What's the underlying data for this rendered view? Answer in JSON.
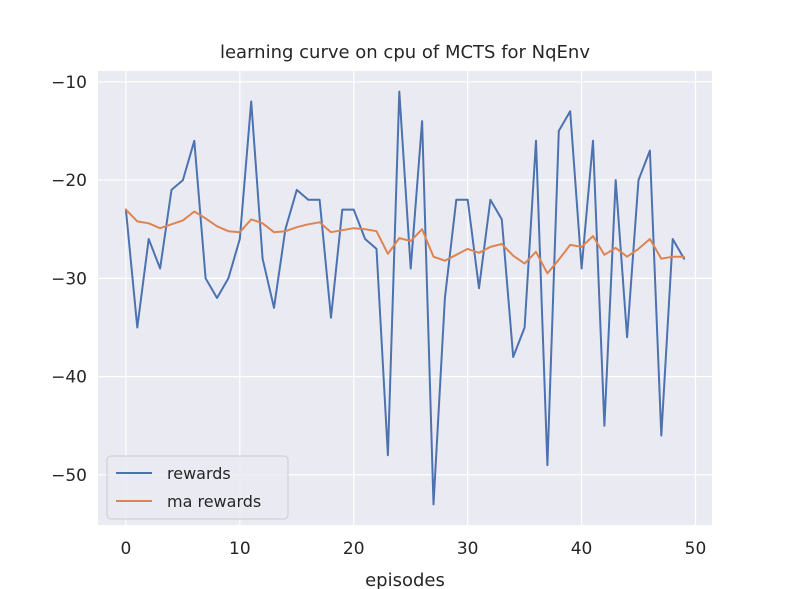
{
  "chart_data": {
    "type": "line",
    "title": "learning curve on cpu of MCTS for NqEnv",
    "xlabel": "episodes",
    "ylabel": "",
    "xlim": [
      -2.45,
      51.45
    ],
    "ylim": [
      -55.1,
      -8.9
    ],
    "xticks": [
      0,
      10,
      20,
      30,
      40,
      50
    ],
    "yticks": [
      -10,
      -20,
      -30,
      -40,
      -50
    ],
    "xtick_labels": [
      "0",
      "10",
      "20",
      "30",
      "40",
      "50"
    ],
    "ytick_labels": [
      "−10",
      "−20",
      "−30",
      "−40",
      "−50"
    ],
    "grid": true,
    "legend_position": "lower-left",
    "background": "#eaeaf2",
    "series": [
      {
        "name": "rewards",
        "color": "#4c72b0",
        "x": [
          0,
          1,
          2,
          3,
          4,
          5,
          6,
          7,
          8,
          9,
          10,
          11,
          12,
          13,
          14,
          15,
          16,
          17,
          18,
          19,
          20,
          21,
          22,
          23,
          24,
          25,
          26,
          27,
          28,
          29,
          30,
          31,
          32,
          33,
          34,
          35,
          36,
          37,
          38,
          39,
          40,
          41,
          42,
          43,
          44,
          45,
          46,
          47,
          48,
          49
        ],
        "values": [
          -23,
          -35,
          -26,
          -29,
          -21,
          -20,
          -16,
          -30,
          -32,
          -30,
          -26,
          -12,
          -28,
          -33,
          -25,
          -21,
          -22,
          -22,
          -34,
          -23,
          -23,
          -26,
          -27,
          -48,
          -11,
          -29,
          -14,
          -53,
          -32,
          -22,
          -22,
          -31,
          -22,
          -24,
          -38,
          -35,
          -16,
          -49,
          -15,
          -13,
          -29,
          -16,
          -45,
          -20,
          -36,
          -20,
          -17,
          -46,
          -26,
          -28
        ]
      },
      {
        "name": "ma rewards",
        "color": "#dd8452",
        "x": [
          0,
          1,
          2,
          3,
          4,
          5,
          6,
          7,
          8,
          9,
          10,
          11,
          12,
          13,
          14,
          15,
          16,
          17,
          18,
          19,
          20,
          21,
          22,
          23,
          24,
          25,
          26,
          27,
          28,
          29,
          30,
          31,
          32,
          33,
          34,
          35,
          36,
          37,
          38,
          39,
          40,
          41,
          42,
          43,
          44,
          45,
          46,
          47,
          48,
          49
        ],
        "values": [
          -23.0,
          -24.2,
          -24.4,
          -24.9,
          -24.5,
          -24.1,
          -23.2,
          -23.9,
          -24.7,
          -25.2,
          -25.3,
          -24.0,
          -24.4,
          -25.3,
          -25.2,
          -24.8,
          -24.5,
          -24.3,
          -25.3,
          -25.1,
          -24.9,
          -25.0,
          -25.2,
          -27.5,
          -25.9,
          -26.2,
          -25.0,
          -27.8,
          -28.2,
          -27.6,
          -27.0,
          -27.4,
          -26.8,
          -26.5,
          -27.7,
          -28.5,
          -27.3,
          -29.5,
          -28.1,
          -26.6,
          -26.8,
          -25.7,
          -27.6,
          -26.9,
          -27.8,
          -27.0,
          -26.0,
          -28.0,
          -27.8,
          -27.8
        ]
      }
    ]
  }
}
